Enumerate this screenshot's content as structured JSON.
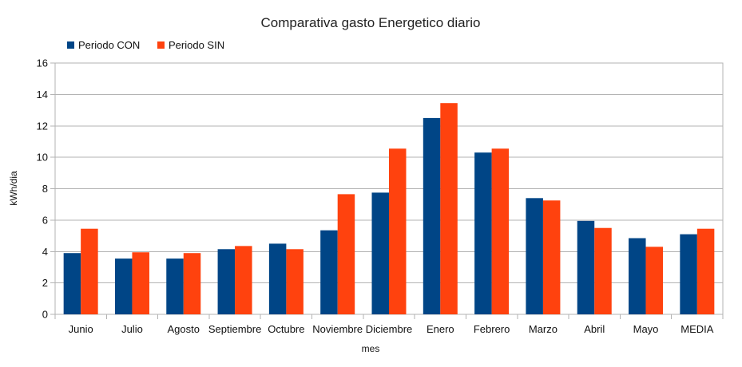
{
  "chart_data": {
    "type": "bar",
    "title": "Comparativa gasto Energetico diario",
    "xlabel": "mes",
    "ylabel": "kWh/dia",
    "ylim": [
      0,
      16
    ],
    "yticks": [
      0,
      2,
      4,
      6,
      8,
      10,
      12,
      14,
      16
    ],
    "grid": true,
    "legend_position": "top-left",
    "categories": [
      "Junio",
      "Julio",
      "Agosto",
      "Septiembre",
      "Octubre",
      "Noviembre",
      "Diciembre",
      "Enero",
      "Febrero",
      "Marzo",
      "Abril",
      "Mayo",
      "MEDIA"
    ],
    "series": [
      {
        "name": "Periodo CON",
        "color": "#004586",
        "values": [
          3.9,
          3.55,
          3.55,
          4.15,
          4.5,
          5.35,
          7.75,
          12.5,
          10.3,
          7.4,
          5.95,
          4.85,
          5.1
        ]
      },
      {
        "name": "Periodo SIN",
        "color": "#ff420e",
        "values": [
          5.45,
          3.95,
          3.9,
          4.35,
          4.15,
          7.65,
          10.55,
          13.45,
          10.55,
          7.25,
          5.5,
          4.3,
          5.45
        ]
      }
    ]
  }
}
